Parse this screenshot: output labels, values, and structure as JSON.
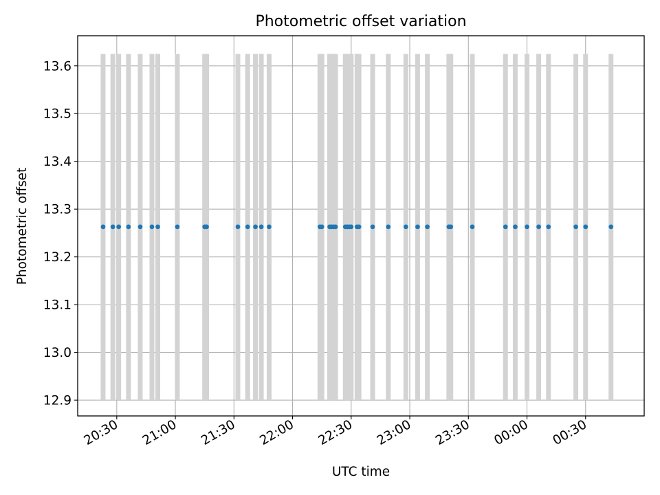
{
  "chart_data": {
    "type": "scatter",
    "title": "Photometric offset variation",
    "xlabel": "UTC time",
    "ylabel": "Photometric offset",
    "x_axis": {
      "kind": "time",
      "range": [
        "20:10",
        "25:00"
      ],
      "ticks": [
        {
          "t": "20:30",
          "label": "20:30"
        },
        {
          "t": "21:00",
          "label": "21:00"
        },
        {
          "t": "21:30",
          "label": "21:30"
        },
        {
          "t": "22:00",
          "label": "22:00"
        },
        {
          "t": "22:30",
          "label": "22:30"
        },
        {
          "t": "23:00",
          "label": "23:00"
        },
        {
          "t": "23:30",
          "label": "23:30"
        },
        {
          "t": "24:00",
          "label": "00:00"
        },
        {
          "t": "24:30",
          "label": "00:30"
        }
      ]
    },
    "y_axis": {
      "range": [
        12.867,
        13.663
      ],
      "ticks": [
        12.9,
        13.0,
        13.1,
        13.2,
        13.3,
        13.4,
        13.5,
        13.6
      ],
      "tick_labels": [
        "12.9",
        "13.0",
        "13.1",
        "13.2",
        "13.3",
        "13.4",
        "13.5",
        "13.6"
      ]
    },
    "grid": true,
    "legend": "none",
    "series": [
      {
        "color": "#1f77b4",
        "marker": "dot",
        "x": [
          "20:23",
          "20:28",
          "20:31",
          "20:36",
          "20:42",
          "20:48",
          "20:51",
          "21:01",
          "21:15",
          "21:16",
          "21:32",
          "21:37",
          "21:41",
          "21:44",
          "21:48",
          "22:14",
          "22:15",
          "22:19",
          "22:20",
          "22:21",
          "22:22",
          "22:27",
          "22:28",
          "22:29",
          "22:30",
          "22:33",
          "22:34",
          "22:41",
          "22:49",
          "22:58",
          "23:04",
          "23:09",
          "23:20",
          "23:21",
          "23:32",
          "23:49",
          "23:54",
          "24:00",
          "24:06",
          "24:11",
          "24:25",
          "24:30",
          "24:43"
        ],
        "y": [
          13.263,
          13.263,
          13.263,
          13.263,
          13.263,
          13.263,
          13.263,
          13.263,
          13.263,
          13.263,
          13.263,
          13.263,
          13.263,
          13.263,
          13.263,
          13.263,
          13.263,
          13.263,
          13.263,
          13.263,
          13.263,
          13.263,
          13.263,
          13.263,
          13.263,
          13.263,
          13.263,
          13.263,
          13.263,
          13.263,
          13.263,
          13.263,
          13.263,
          13.263,
          13.263,
          13.263,
          13.263,
          13.263,
          13.263,
          13.263,
          13.263,
          13.263,
          13.263
        ]
      }
    ],
    "error_bars": {
      "color": "#d3d3d3",
      "y_range": [
        12.9,
        13.625
      ],
      "x": [
        "20:23",
        "20:28",
        "20:31",
        "20:36",
        "20:42",
        "20:48",
        "20:51",
        "21:01",
        "21:15",
        "21:16",
        "21:32",
        "21:37",
        "21:41",
        "21:44",
        "21:48",
        "22:14",
        "22:15",
        "22:19",
        "22:20",
        "22:21",
        "22:22",
        "22:27",
        "22:28",
        "22:29",
        "22:30",
        "22:33",
        "22:34",
        "22:41",
        "22:49",
        "22:58",
        "23:04",
        "23:09",
        "23:20",
        "23:21",
        "23:32",
        "23:49",
        "23:54",
        "24:00",
        "24:06",
        "24:11",
        "24:25",
        "24:30",
        "24:43"
      ]
    }
  }
}
